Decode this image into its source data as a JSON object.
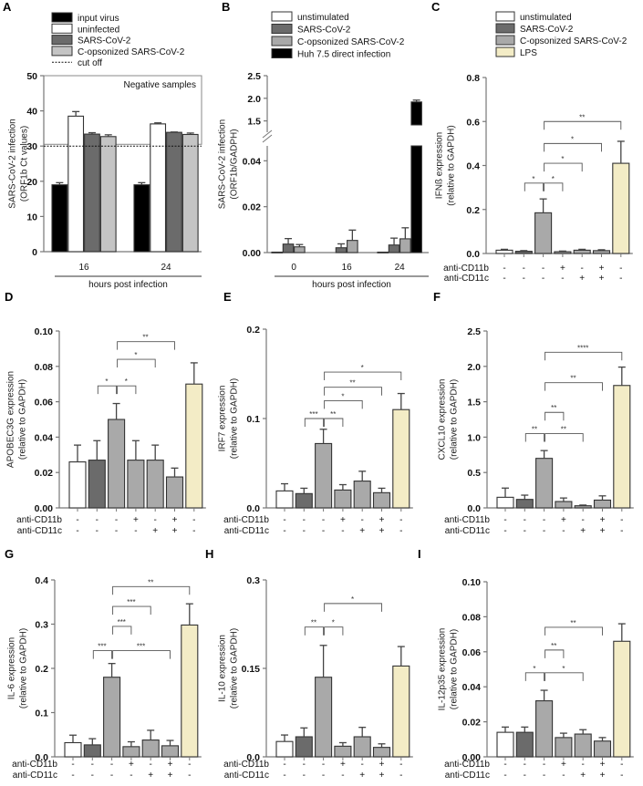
{
  "chart_data": [
    {
      "letter": "A",
      "type": "bar",
      "ylabel": [
        "SARS-CoV-2 infection",
        "(ORF1b Ct values)"
      ],
      "yticks": [
        "0",
        "10",
        "20",
        "30",
        "40",
        "50"
      ],
      "ylim": [
        0,
        50
      ],
      "categories": [
        "16",
        "24"
      ],
      "xlabel": "hours post infection",
      "legend": [
        {
          "label": "input virus",
          "color": "#000000"
        },
        {
          "label": "uninfected",
          "color": "#ffffff"
        },
        {
          "label": "SARS-CoV-2",
          "color": "#6b6b6b"
        },
        {
          "label": "C-opsonized SARS-CoV-2",
          "color": "#c4c4c4"
        },
        {
          "label": "cut off",
          "dotted": true
        }
      ],
      "series": [
        {
          "name": "input virus",
          "color": "#000000",
          "values": [
            19.0,
            19.0
          ],
          "errors": [
            0.6,
            0.6
          ]
        },
        {
          "name": "uninfected",
          "color": "#ffffff",
          "values": [
            38.5,
            36.3
          ],
          "errors": [
            1.3,
            0.3
          ]
        },
        {
          "name": "SARS-CoV-2",
          "color": "#6b6b6b",
          "values": [
            33.4,
            33.9
          ],
          "errors": [
            0.4,
            0.1
          ]
        },
        {
          "name": "C-opsonized SARS-CoV-2",
          "color": "#c4c4c4",
          "values": [
            32.7,
            33.3
          ],
          "errors": [
            0.5,
            0.4
          ]
        }
      ],
      "cutoff": 30,
      "annotation": "Negative samples",
      "negative_range": [
        30.5,
        50
      ]
    },
    {
      "letter": "B",
      "type": "bar",
      "ylabel": [
        "SARS-CoV-2 infection",
        "(ORF1b/GADPH)"
      ],
      "yticks": [
        "0.00",
        "0.02",
        "0.04",
        "1.5",
        "2.0",
        "2.5"
      ],
      "axis_segments": [
        [
          0,
          0.0465
        ],
        [
          1.25,
          2.5
        ]
      ],
      "categories": [
        "0",
        "16",
        "24"
      ],
      "xlabel": "hours post infection",
      "legend": [
        {
          "label": "unstimulated",
          "color": "#ffffff"
        },
        {
          "label": "SARS-CoV-2",
          "color": "#6b6b6b"
        },
        {
          "label": "C-opsonized SARS-CoV-2",
          "color": "#a9a9a9"
        },
        {
          "label": "Huh 7.5 direct infection",
          "color": "#000000"
        }
      ],
      "series": [
        {
          "name": "unstimulated",
          "color": "#ffffff",
          "values": [
            0.0002,
            null,
            0.0002
          ],
          "errors": [
            0,
            0,
            0
          ]
        },
        {
          "name": "SARS-CoV-2",
          "color": "#6b6b6b",
          "values": [
            0.0037,
            0.0021,
            0.0033
          ],
          "errors": [
            0.0024,
            0.0017,
            0.003
          ]
        },
        {
          "name": "C-opsonized SARS-CoV-2",
          "color": "#a9a9a9",
          "values": [
            0.0025,
            0.0053,
            0.006
          ],
          "errors": [
            0.001,
            0.0045,
            0.0048
          ]
        },
        {
          "name": "Huh 7.5 direct infection",
          "color": "#000000",
          "values": [
            null,
            null,
            1.92
          ],
          "errors": [
            0,
            0,
            0.04
          ]
        }
      ]
    },
    {
      "letter": "C",
      "type": "bar",
      "ylabel": [
        "IFNß expression",
        "(relative to GAPDH)"
      ],
      "yticks": [
        "0.0",
        "0.2",
        "0.4",
        "0.6",
        "0.8"
      ],
      "ylim": [
        0,
        0.8
      ],
      "legend": [
        {
          "label": "unstimulated",
          "color": "#ffffff"
        },
        {
          "label": "SARS-CoV-2",
          "color": "#6b6b6b"
        },
        {
          "label": "C-opsonized SARS-CoV-2",
          "color": "#a9a9a9"
        },
        {
          "label": "LPS",
          "color": "#f3ecc6"
        }
      ],
      "bars": [
        {
          "value": 0.015,
          "error": 0.004,
          "color": "#ffffff"
        },
        {
          "value": 0.01,
          "error": 0.003,
          "color": "#6b6b6b"
        },
        {
          "value": 0.185,
          "error": 0.063,
          "color": "#a9a9a9"
        },
        {
          "value": 0.008,
          "error": 0.003,
          "color": "#a9a9a9"
        },
        {
          "value": 0.015,
          "error": 0.004,
          "color": "#a9a9a9"
        },
        {
          "value": 0.013,
          "error": 0.004,
          "color": "#a9a9a9"
        },
        {
          "value": 0.41,
          "error": 0.1,
          "color": "#f3ecc6"
        }
      ],
      "treatments": [
        {
          "label": "anti-CD11b",
          "signs": [
            "-",
            "-",
            "-",
            "+",
            "-",
            "+",
            "-"
          ]
        },
        {
          "label": "anti-CD11c",
          "signs": [
            "-",
            "-",
            "-",
            "-",
            "+",
            "+",
            "-"
          ]
        }
      ],
      "significance": [
        {
          "from": 1,
          "to": 2,
          "y": 0.32,
          "label": "*"
        },
        {
          "from": 2,
          "to": 3,
          "y": 0.32,
          "label": "*"
        },
        {
          "from": 2,
          "to": 4,
          "y": 0.41,
          "label": "*"
        },
        {
          "from": 2,
          "to": 5,
          "y": 0.5,
          "label": "*"
        },
        {
          "from": 2,
          "to": 6,
          "y": 0.6,
          "label": "**"
        }
      ]
    },
    {
      "letter": "D",
      "type": "bar",
      "ylabel": [
        "APOBEC3G expression",
        "(relative to GAPDH)"
      ],
      "yticks": [
        "0.00",
        "0.02",
        "0.04",
        "0.06",
        "0.08",
        "0.10"
      ],
      "ylim": [
        0,
        0.1
      ],
      "bars": [
        {
          "value": 0.026,
          "error": 0.0095,
          "color": "#ffffff"
        },
        {
          "value": 0.027,
          "error": 0.011,
          "color": "#6b6b6b"
        },
        {
          "value": 0.05,
          "error": 0.009,
          "color": "#a9a9a9"
        },
        {
          "value": 0.027,
          "error": 0.011,
          "color": "#a9a9a9"
        },
        {
          "value": 0.027,
          "error": 0.0085,
          "color": "#a9a9a9"
        },
        {
          "value": 0.0175,
          "error": 0.005,
          "color": "#a9a9a9"
        },
        {
          "value": 0.07,
          "error": 0.012,
          "color": "#f3ecc6"
        }
      ],
      "treatments": [
        {
          "label": "anti-CD11b",
          "signs": [
            "-",
            "-",
            "-",
            "+",
            "-",
            "+",
            "-"
          ]
        },
        {
          "label": "anti-CD11c",
          "signs": [
            "-",
            "-",
            "-",
            "-",
            "+",
            "+",
            "-"
          ]
        }
      ],
      "significance": [
        {
          "from": 1,
          "to": 2,
          "y": 0.069,
          "label": "*"
        },
        {
          "from": 2,
          "to": 3,
          "y": 0.069,
          "label": "*"
        },
        {
          "from": 2,
          "to": 4,
          "y": 0.084,
          "label": "*"
        },
        {
          "from": 2,
          "to": 5,
          "y": 0.094,
          "label": "**"
        }
      ]
    },
    {
      "letter": "E",
      "type": "bar",
      "ylabel": [
        "IRF7 expression",
        "(relative to GAPDH)"
      ],
      "yticks": [
        "0.0",
        "0.1",
        "0.2"
      ],
      "ylim": [
        0,
        0.2
      ],
      "bars": [
        {
          "value": 0.019,
          "error": 0.008,
          "color": "#ffffff"
        },
        {
          "value": 0.016,
          "error": 0.006,
          "color": "#6b6b6b"
        },
        {
          "value": 0.072,
          "error": 0.016,
          "color": "#a9a9a9"
        },
        {
          "value": 0.02,
          "error": 0.006,
          "color": "#a9a9a9"
        },
        {
          "value": 0.03,
          "error": 0.011,
          "color": "#a9a9a9"
        },
        {
          "value": 0.017,
          "error": 0.005,
          "color": "#a9a9a9"
        },
        {
          "value": 0.11,
          "error": 0.018,
          "color": "#f3ecc6"
        }
      ],
      "treatments": [
        {
          "label": "anti-CD11b",
          "signs": [
            "-",
            "-",
            "-",
            "+",
            "-",
            "+",
            "-"
          ]
        },
        {
          "label": "anti-CD11c",
          "signs": [
            "-",
            "-",
            "-",
            "-",
            "+",
            "+",
            "-"
          ]
        }
      ],
      "significance": [
        {
          "from": 1,
          "to": 2,
          "y": 0.1,
          "label": "***"
        },
        {
          "from": 2,
          "to": 3,
          "y": 0.1,
          "label": "**"
        },
        {
          "from": 2,
          "to": 4,
          "y": 0.12,
          "label": "*"
        },
        {
          "from": 2,
          "to": 5,
          "y": 0.135,
          "label": "**"
        },
        {
          "from": 2,
          "to": 6,
          "y": 0.152,
          "label": "*"
        }
      ]
    },
    {
      "letter": "F",
      "type": "bar",
      "ylabel": [
        "CXCL10 expression",
        "(relative to GAPDH)"
      ],
      "yticks": [
        "0.0",
        "0.5",
        "1.0",
        "1.5",
        "2.0",
        "2.5"
      ],
      "ylim": [
        0,
        2.5
      ],
      "bars": [
        {
          "value": 0.15,
          "error": 0.13,
          "color": "#ffffff"
        },
        {
          "value": 0.12,
          "error": 0.06,
          "color": "#6b6b6b"
        },
        {
          "value": 0.7,
          "error": 0.11,
          "color": "#a9a9a9"
        },
        {
          "value": 0.09,
          "error": 0.05,
          "color": "#a9a9a9"
        },
        {
          "value": 0.03,
          "error": 0.01,
          "color": "#a9a9a9"
        },
        {
          "value": 0.11,
          "error": 0.06,
          "color": "#a9a9a9"
        },
        {
          "value": 1.73,
          "error": 0.26,
          "color": "#f3ecc6"
        }
      ],
      "treatments": [
        {
          "label": "anti-CD11b",
          "signs": [
            "-",
            "-",
            "-",
            "+",
            "-",
            "+",
            "-"
          ]
        },
        {
          "label": "anti-CD11c",
          "signs": [
            "-",
            "-",
            "-",
            "-",
            "+",
            "+",
            "-"
          ]
        }
      ],
      "significance": [
        {
          "from": 1,
          "to": 2,
          "y": 1.05,
          "label": "**"
        },
        {
          "from": 2,
          "to": 4,
          "y": 1.05,
          "label": "**"
        },
        {
          "from": 2,
          "to": 3,
          "y": 1.35,
          "label": "**"
        },
        {
          "from": 2,
          "to": 5,
          "y": 1.77,
          "label": "**"
        },
        {
          "from": 2,
          "to": 6,
          "y": 2.2,
          "label": "****"
        }
      ]
    },
    {
      "letter": "G",
      "type": "bar",
      "ylabel": [
        "IL-6 expression",
        "(relative to GAPDH)"
      ],
      "yticks": [
        "0.0",
        "0.1",
        "0.2",
        "0.3",
        "0.4"
      ],
      "ylim": [
        0,
        0.4
      ],
      "bars": [
        {
          "value": 0.032,
          "error": 0.017,
          "color": "#ffffff"
        },
        {
          "value": 0.027,
          "error": 0.014,
          "color": "#6b6b6b"
        },
        {
          "value": 0.18,
          "error": 0.031,
          "color": "#a9a9a9"
        },
        {
          "value": 0.023,
          "error": 0.011,
          "color": "#a9a9a9"
        },
        {
          "value": 0.038,
          "error": 0.022,
          "color": "#a9a9a9"
        },
        {
          "value": 0.025,
          "error": 0.012,
          "color": "#a9a9a9"
        },
        {
          "value": 0.298,
          "error": 0.048,
          "color": "#f3ecc6"
        }
      ],
      "treatments": [
        {
          "label": "anti-CD11b",
          "signs": [
            "-",
            "-",
            "-",
            "+",
            "-",
            "+",
            "-"
          ]
        },
        {
          "label": "anti-CD11c",
          "signs": [
            "-",
            "-",
            "-",
            "-",
            "+",
            "+",
            "-"
          ]
        }
      ],
      "significance": [
        {
          "from": 1,
          "to": 2,
          "y": 0.24,
          "label": "***"
        },
        {
          "from": 2,
          "to": 5,
          "y": 0.24,
          "label": "***"
        },
        {
          "from": 2,
          "to": 3,
          "y": 0.295,
          "label": "***"
        },
        {
          "from": 2,
          "to": 4,
          "y": 0.34,
          "label": "***"
        },
        {
          "from": 2,
          "to": 6,
          "y": 0.385,
          "label": "**"
        }
      ]
    },
    {
      "letter": "H",
      "type": "bar",
      "ylabel": [
        "IL-10 expression",
        "(relative to GAPDH)"
      ],
      "yticks": [
        "0.0",
        "0.15",
        "0.3"
      ],
      "ylim": [
        0,
        0.3
      ],
      "bars": [
        {
          "value": 0.026,
          "error": 0.011,
          "color": "#ffffff"
        },
        {
          "value": 0.034,
          "error": 0.015,
          "color": "#6b6b6b"
        },
        {
          "value": 0.135,
          "error": 0.054,
          "color": "#a9a9a9"
        },
        {
          "value": 0.018,
          "error": 0.006,
          "color": "#a9a9a9"
        },
        {
          "value": 0.034,
          "error": 0.016,
          "color": "#a9a9a9"
        },
        {
          "value": 0.016,
          "error": 0.006,
          "color": "#a9a9a9"
        },
        {
          "value": 0.154,
          "error": 0.033,
          "color": "#f3ecc6"
        }
      ],
      "treatments": [
        {
          "label": "anti-CD11b",
          "signs": [
            "-",
            "-",
            "-",
            "+",
            "-",
            "+",
            "-"
          ]
        },
        {
          "label": "anti-CD11c",
          "signs": [
            "-",
            "-",
            "-",
            "-",
            "+",
            "+",
            "-"
          ]
        }
      ],
      "significance": [
        {
          "from": 1,
          "to": 2,
          "y": 0.22,
          "label": "**"
        },
        {
          "from": 2,
          "to": 3,
          "y": 0.22,
          "label": "*"
        },
        {
          "from": 2,
          "to": 5,
          "y": 0.26,
          "label": "*"
        }
      ]
    },
    {
      "letter": "I",
      "type": "bar",
      "ylabel": [
        "IL-12p35 expression",
        "(relative to GAPDH)"
      ],
      "yticks": [
        "0.00",
        "0.02",
        "0.04",
        "0.06",
        "0.08",
        "0.10"
      ],
      "ylim": [
        0,
        0.1
      ],
      "bars": [
        {
          "value": 0.014,
          "error": 0.003,
          "color": "#ffffff"
        },
        {
          "value": 0.014,
          "error": 0.003,
          "color": "#6b6b6b"
        },
        {
          "value": 0.032,
          "error": 0.006,
          "color": "#a9a9a9"
        },
        {
          "value": 0.011,
          "error": 0.0025,
          "color": "#a9a9a9"
        },
        {
          "value": 0.013,
          "error": 0.0025,
          "color": "#a9a9a9"
        },
        {
          "value": 0.009,
          "error": 0.002,
          "color": "#a9a9a9"
        },
        {
          "value": 0.066,
          "error": 0.01,
          "color": "#f3ecc6"
        }
      ],
      "treatments": [
        {
          "label": "anti-CD11b",
          "signs": [
            "-",
            "-",
            "-",
            "+",
            "-",
            "+",
            "-"
          ]
        },
        {
          "label": "anti-CD11c",
          "signs": [
            "-",
            "-",
            "-",
            "-",
            "+",
            "+",
            "-"
          ]
        }
      ],
      "significance": [
        {
          "from": 1,
          "to": 2,
          "y": 0.048,
          "label": "*"
        },
        {
          "from": 2,
          "to": 4,
          "y": 0.048,
          "label": "*"
        },
        {
          "from": 2,
          "to": 3,
          "y": 0.061,
          "label": "**"
        },
        {
          "from": 2,
          "to": 5,
          "y": 0.074,
          "label": "**"
        }
      ]
    }
  ]
}
